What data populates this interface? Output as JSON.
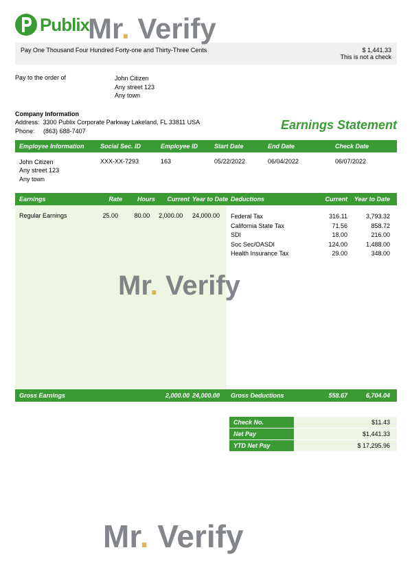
{
  "colors": {
    "brand_green": "#3a9b35",
    "light_green": "#eef5e3",
    "light_gray": "#f0f0f0",
    "wm_gray": "#6d7076",
    "wm_dot": "#d4a942",
    "white": "#ffffff",
    "black": "#000000"
  },
  "logo": {
    "brand": "Publix",
    "icon_letter": "P"
  },
  "watermark": {
    "text_left": "Mr",
    "dot": ".",
    "text_right": "Verify"
  },
  "pay_line": {
    "words": "Pay One Thousand Four Hundred Forty-one and Thirty-Three Cents",
    "amount": "$ 1,441.33",
    "note": "This is not a check"
  },
  "pay_to": {
    "label": "Pay to the order of",
    "name": "John Citizen",
    "addr1": "Any street 123",
    "addr2": "Any town"
  },
  "company": {
    "title": "Company Information",
    "address_label": "Address:",
    "address": "3300 Publix Corporate Parkway Lakeland, FL 33811 USA",
    "phone_label": "Phone:",
    "phone": "(863) 688-7407"
  },
  "stmt_title": "Earnings Statement",
  "emp_info": {
    "headers": [
      "Employee Information",
      "Social Sec. ID",
      "Employee ID",
      "Start Date",
      "End Date",
      "Check Date"
    ],
    "name": "John Citizen",
    "addr1": "Any street 123",
    "addr2": "Any town",
    "ssn": "XXX-XX-7293",
    "emp_id": "163",
    "start": "05/22/2022",
    "end": "06/04/2022",
    "check": "06/07/2022"
  },
  "earn_hdr": {
    "left": [
      "Earnings",
      "Rate",
      "Hours",
      "Current",
      "Year to Date"
    ],
    "right": [
      "Deductions",
      "Current",
      "Year to Date"
    ]
  },
  "earnings": {
    "label": "Regular Earnings",
    "rate": "25.00",
    "hours": "80.00",
    "current": "2,000.00",
    "ytd": "24,000.00"
  },
  "deductions": [
    {
      "label": "Federal Tax",
      "current": "316.11",
      "ytd": "3,793.32"
    },
    {
      "label": "California State Tax",
      "current": "71.56",
      "ytd": "858.72"
    },
    {
      "label": "SDI",
      "current": "18.00",
      "ytd": "216.00"
    },
    {
      "label": "Soc Sec/OASDI",
      "current": "124.00",
      "ytd": "1,488.00"
    },
    {
      "label": "Health Insurance Tax",
      "current": "29.00",
      "ytd": "348.00"
    }
  ],
  "gross": {
    "earn_label": "Gross Earnings",
    "earn_current": "2,000.00",
    "earn_ytd": "24,000.00",
    "ded_label": "Gross Deductions",
    "ded_current": "558.67",
    "ded_ytd": "6,704.04"
  },
  "summary": [
    {
      "label": "Check No.",
      "value": "$11.43"
    },
    {
      "label": "Net Pay",
      "value": "$1,441.33"
    },
    {
      "label": "YTD Net Pay",
      "value": "$ 17,295.96"
    }
  ]
}
